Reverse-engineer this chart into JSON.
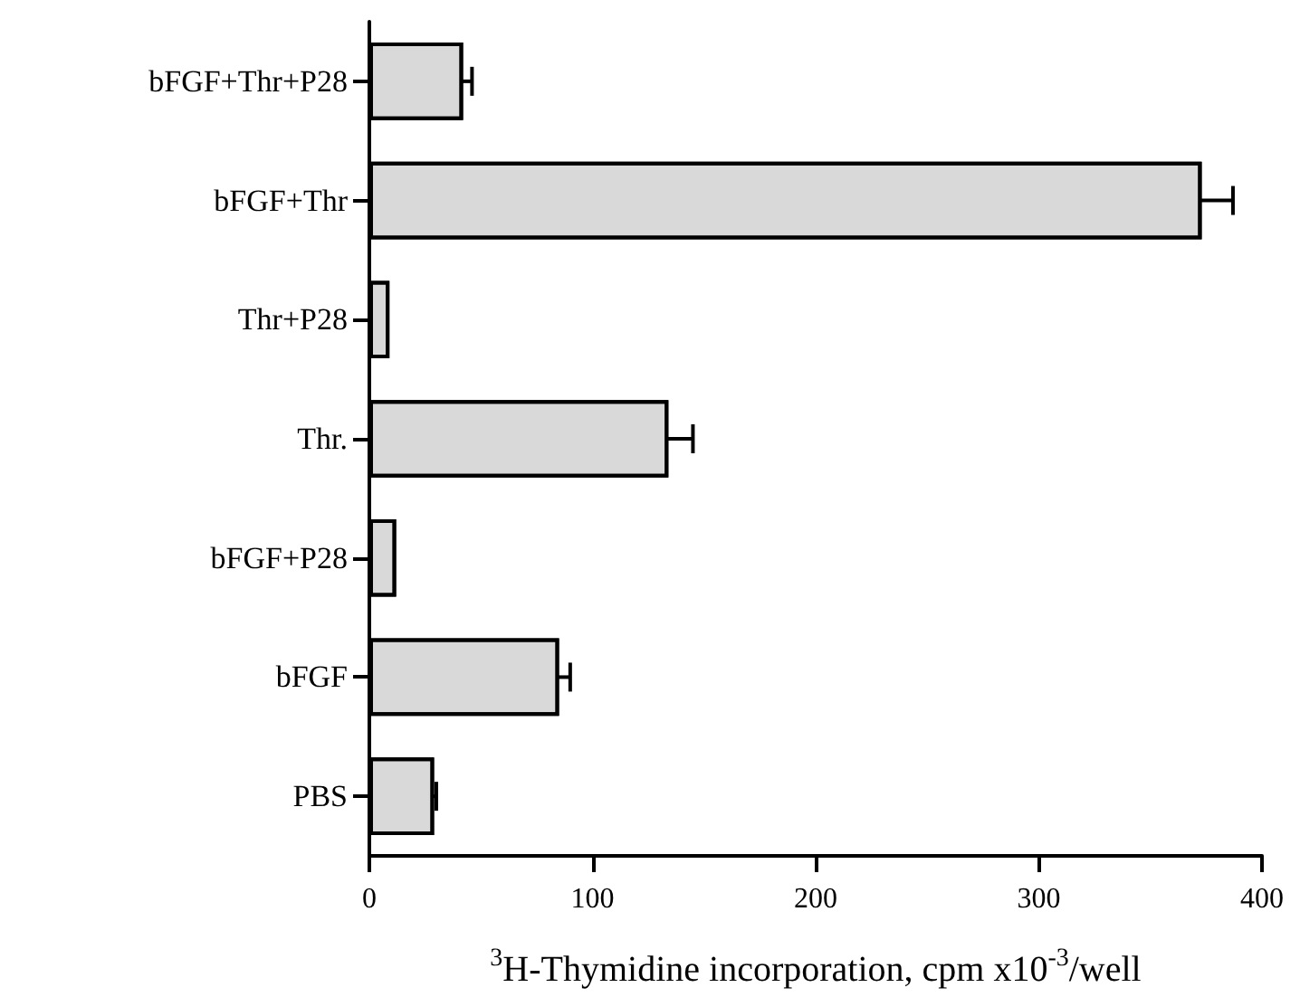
{
  "chart_data": {
    "type": "bar",
    "orientation": "horizontal",
    "xlabel": "$^{3}$H-Thymidine incorporation, cpm x10$^{-3}$/well",
    "categories": [
      "bFGF+Thr+P28",
      "bFGF+Thr",
      "Thr+P28",
      "Thr.",
      "bFGF+P28",
      "bFGF",
      "PBS"
    ],
    "values": [
      42,
      373,
      9,
      134,
      12,
      85,
      29
    ],
    "errors": [
      4,
      14,
      null,
      11,
      null,
      5,
      1
    ],
    "color": "#d9d9d9",
    "xlim": [
      0,
      400
    ],
    "xticks": [
      0,
      100,
      200,
      300,
      400
    ],
    "grid": false
  }
}
